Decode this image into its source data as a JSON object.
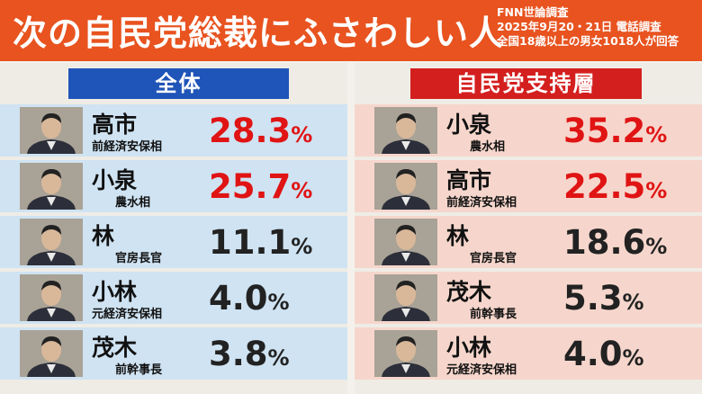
{
  "header": {
    "title": "次の自民党総裁にふさわしい人",
    "source": "FNN世論調査",
    "date_method": "2025年9月20・21日 電話調査",
    "sample": "全国18歳以上の男女1018人が回答"
  },
  "chart_data": [
    {
      "type": "table",
      "title": "全体",
      "unit": "%",
      "rows": [
        {
          "name": "高市",
          "post": "前経済安保相",
          "value": 28.3,
          "display": "28.3",
          "highlight": true
        },
        {
          "name": "小泉",
          "post": "農水相",
          "value": 25.7,
          "display": "25.7",
          "highlight": true
        },
        {
          "name": "林",
          "post": "官房長官",
          "value": 11.1,
          "display": "11.1",
          "highlight": false
        },
        {
          "name": "小林",
          "post": "元経済安保相",
          "value": 4.0,
          "display": "4.0",
          "highlight": false
        },
        {
          "name": "茂木",
          "post": "前幹事長",
          "value": 3.8,
          "display": "3.8",
          "highlight": false
        }
      ]
    },
    {
      "type": "table",
      "title": "自民党支持層",
      "unit": "%",
      "rows": [
        {
          "name": "小泉",
          "post": "農水相",
          "value": 35.2,
          "display": "35.2",
          "highlight": true
        },
        {
          "name": "高市",
          "post": "前経済安保相",
          "value": 22.5,
          "display": "22.5",
          "highlight": true
        },
        {
          "name": "林",
          "post": "官房長官",
          "value": 18.6,
          "display": "18.6",
          "highlight": false
        },
        {
          "name": "茂木",
          "post": "前幹事長",
          "value": 5.3,
          "display": "5.3",
          "highlight": false
        },
        {
          "name": "小林",
          "post": "元経済安保相",
          "value": 4.0,
          "display": "4.0",
          "highlight": false
        }
      ]
    }
  ],
  "colors": {
    "header_bg": "#e8531f",
    "left_label_bg": "#1f54b8",
    "right_label_bg": "#d41f1f",
    "left_row_bg": "#cfe3f2",
    "right_row_bg": "#f6d6cc",
    "highlight_value": "#e01414"
  }
}
